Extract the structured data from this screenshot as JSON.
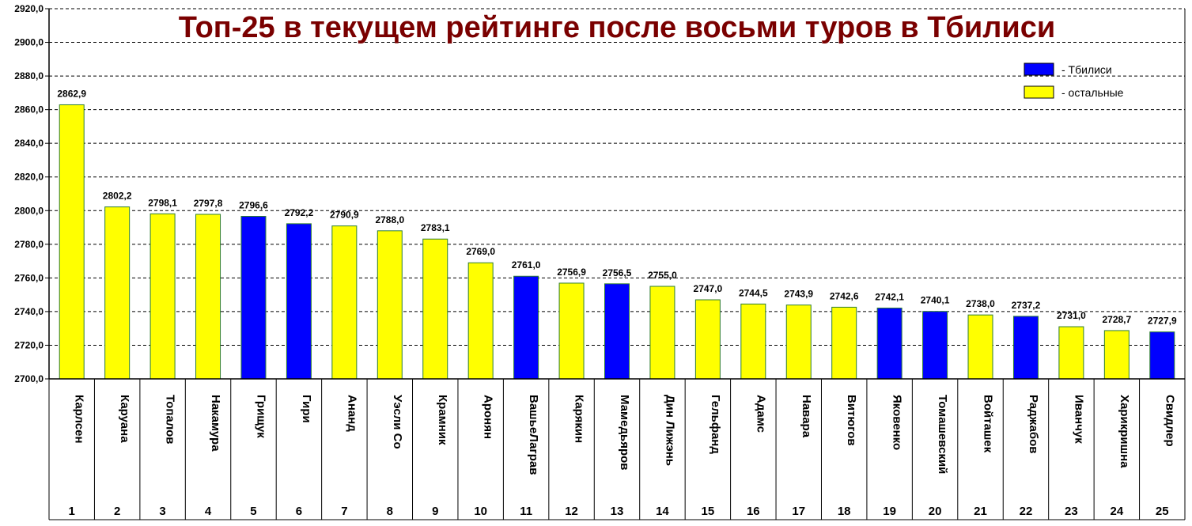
{
  "chart_data": {
    "type": "bar",
    "title": "Топ-25 в текущем рейтинге после восьми туров в Тбилиси",
    "ylim": [
      2700,
      2920
    ],
    "ytick_step": 20,
    "ytick_labels": [
      "2700,0",
      "2720,0",
      "2740,0",
      "2760,0",
      "2780,0",
      "2800,0",
      "2820,0",
      "2840,0",
      "2860,0",
      "2880,0",
      "2900,0",
      "2920,0"
    ],
    "grid": true,
    "legend_position": "top-right",
    "legend": [
      {
        "key": "tbilisi",
        "label": "- Тбилиси",
        "color": "#0000ff"
      },
      {
        "key": "other",
        "label": "- остальные",
        "color": "#ffff00"
      }
    ],
    "categories": [
      "Карлсен",
      "Каруана",
      "Топалов",
      "Накамура",
      "Грищук",
      "Гири",
      "Ананд",
      "Уэсли Со",
      "Крамник",
      "Аронян",
      "ВашьеЛаграв",
      "Карякин",
      "Мамедьяров",
      "Дин Лижэнь",
      "Гельфанд",
      "Адамс",
      "Навара",
      "Витюгов",
      "Яковенко",
      "Томашевский",
      "Войташек",
      "Раджабов",
      "Иванчук",
      "Харикришна",
      "Свидлер"
    ],
    "ranks": [
      "1",
      "2",
      "3",
      "4",
      "5",
      "6",
      "7",
      "8",
      "9",
      "10",
      "11",
      "12",
      "13",
      "14",
      "15",
      "16",
      "17",
      "18",
      "19",
      "20",
      "21",
      "22",
      "23",
      "24",
      "25"
    ],
    "values": [
      2862.9,
      2802.2,
      2798.1,
      2797.8,
      2796.6,
      2792.2,
      2790.9,
      2788.0,
      2783.1,
      2769.0,
      2761.0,
      2756.9,
      2756.5,
      2755.0,
      2747.0,
      2744.5,
      2743.9,
      2742.6,
      2742.1,
      2740.1,
      2738.0,
      2737.2,
      2731.0,
      2728.7,
      2727.9
    ],
    "value_labels": [
      "2862,9",
      "2802,2",
      "2798,1",
      "2797,8",
      "2796,6",
      "2792,2",
      "2790,9",
      "2788,0",
      "2783,1",
      "2769,0",
      "2761,0",
      "2756,9",
      "2756,5",
      "2755,0",
      "2747,0",
      "2744,5",
      "2743,9",
      "2742,6",
      "2742,1",
      "2740,1",
      "2738,0",
      "2737,2",
      "2731,0",
      "2728,7",
      "2727,9"
    ],
    "groups": [
      "other",
      "other",
      "other",
      "other",
      "tbilisi",
      "tbilisi",
      "other",
      "other",
      "other",
      "other",
      "tbilisi",
      "other",
      "tbilisi",
      "other",
      "other",
      "other",
      "other",
      "other",
      "tbilisi",
      "tbilisi",
      "other",
      "tbilisi",
      "other",
      "other",
      "tbilisi"
    ]
  }
}
